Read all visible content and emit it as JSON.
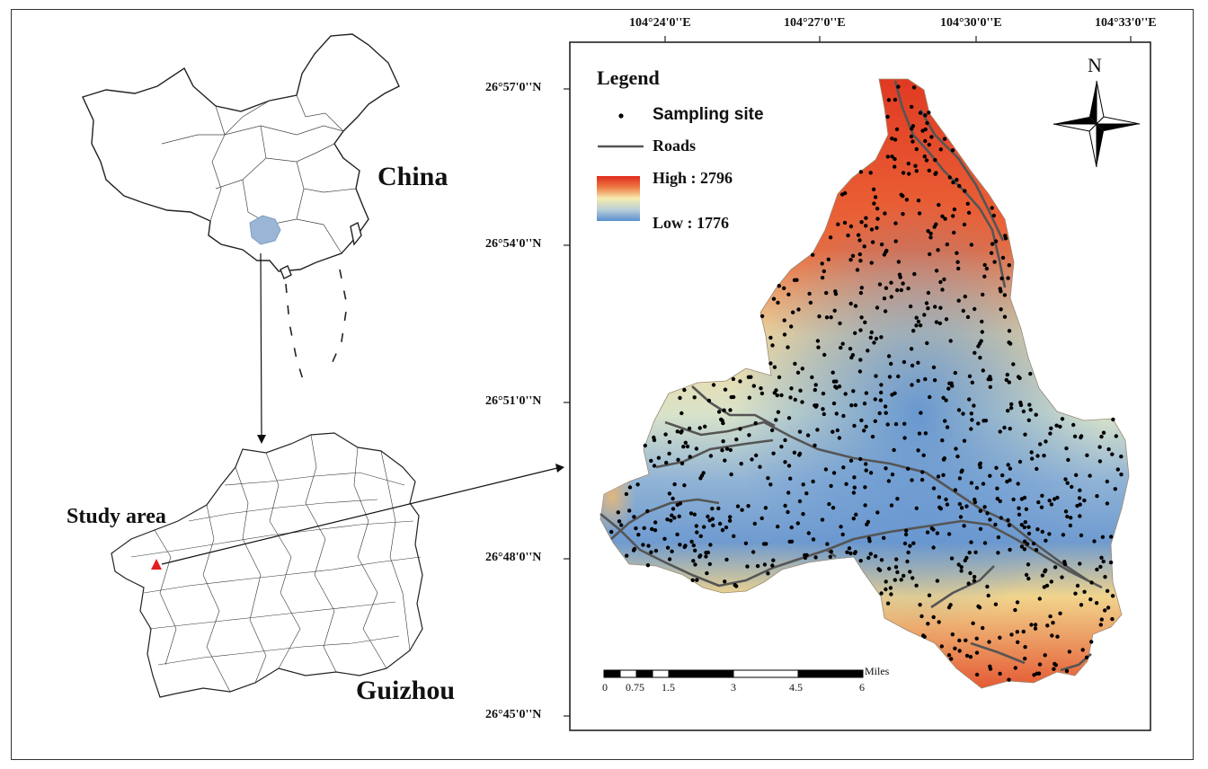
{
  "left_panel": {
    "china_label": "China",
    "guizhou_label": "Guizhou",
    "study_area_label": "Study area"
  },
  "map": {
    "top_coords": [
      "104°24'0''E",
      "104°27'0''E",
      "104°30'0''E",
      "104°33'0''E"
    ],
    "left_coords": [
      "26°57'0''N",
      "26°54'0''N",
      "26°51'0''N",
      "26°48'0''N",
      "26°45'0''N"
    ],
    "legend": {
      "title": "Legend",
      "sampling_site": "Sampling site",
      "roads": "Roads",
      "high": "High : 2796",
      "low": "Low : 1776"
    },
    "north_label": "N",
    "scale": {
      "unit": "Miles",
      "ticks": [
        "0",
        "0.75",
        "1.5",
        "3",
        "4.5",
        "6"
      ]
    }
  },
  "colors": {
    "elev_high": "#e2432a",
    "elev_mid": "#f4e9a8",
    "elev_low": "#6e9bd1",
    "guizhou_fill": "#9bb5d6",
    "marker": "#e02020"
  }
}
